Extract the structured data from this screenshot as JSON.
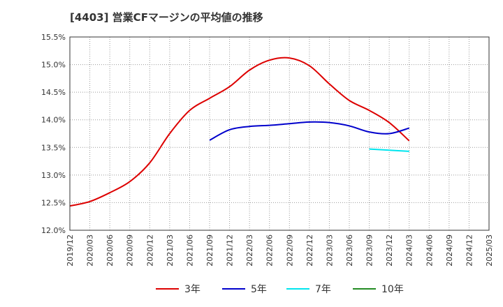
{
  "chart_data": {
    "type": "line",
    "title": "[4403]  営業CFマージンの平均値の推移",
    "xlabel": "",
    "ylabel": "",
    "ylim": [
      12.0,
      15.5
    ],
    "y_ticks": [
      "12.0%",
      "12.5%",
      "13.0%",
      "13.5%",
      "14.0%",
      "14.5%",
      "15.0%",
      "15.5%"
    ],
    "x_ticks": [
      "2019/12",
      "2020/03",
      "2020/06",
      "2020/09",
      "2020/12",
      "2021/03",
      "2021/06",
      "2021/09",
      "2021/12",
      "2022/03",
      "2022/06",
      "2022/09",
      "2022/12",
      "2023/03",
      "2023/06",
      "2023/09",
      "2023/12",
      "2024/03",
      "2024/06",
      "2024/09",
      "2024/12",
      "2025/03"
    ],
    "grid": true,
    "legend_position": "bottom",
    "series": [
      {
        "name": "3年",
        "color": "#dd0000",
        "points": [
          [
            "2019/12",
            12.44
          ],
          [
            "2020/03",
            12.52
          ],
          [
            "2020/06",
            12.68
          ],
          [
            "2020/09",
            12.88
          ],
          [
            "2020/12",
            13.22
          ],
          [
            "2021/03",
            13.75
          ],
          [
            "2021/06",
            14.17
          ],
          [
            "2021/09",
            14.39
          ],
          [
            "2021/12",
            14.6
          ],
          [
            "2022/03",
            14.9
          ],
          [
            "2022/06",
            15.08
          ],
          [
            "2022/09",
            15.12
          ],
          [
            "2022/12",
            14.98
          ],
          [
            "2023/03",
            14.65
          ],
          [
            "2023/06",
            14.35
          ],
          [
            "2023/09",
            14.17
          ],
          [
            "2023/12",
            13.95
          ],
          [
            "2024/03",
            13.62
          ]
        ]
      },
      {
        "name": "5年",
        "color": "#0000cc",
        "points": [
          [
            "2021/09",
            13.63
          ],
          [
            "2021/12",
            13.82
          ],
          [
            "2022/03",
            13.88
          ],
          [
            "2022/06",
            13.9
          ],
          [
            "2022/09",
            13.93
          ],
          [
            "2022/12",
            13.96
          ],
          [
            "2023/03",
            13.95
          ],
          [
            "2023/06",
            13.89
          ],
          [
            "2023/09",
            13.78
          ],
          [
            "2023/12",
            13.75
          ],
          [
            "2024/03",
            13.85
          ]
        ]
      },
      {
        "name": "7年",
        "color": "#00e5ee",
        "points": [
          [
            "2023/09",
            13.47
          ],
          [
            "2023/12",
            13.45
          ],
          [
            "2024/03",
            13.43
          ]
        ]
      },
      {
        "name": "10年",
        "color": "#228b22",
        "points": []
      }
    ]
  }
}
